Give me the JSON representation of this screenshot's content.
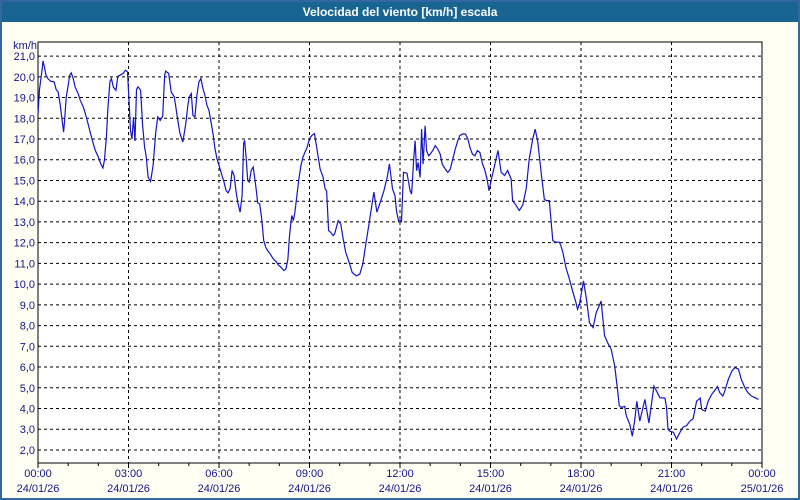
{
  "window": {
    "title": "Velocidad del viento [km/h] escala"
  },
  "colors": {
    "frame_border": "#3366a3",
    "titlebar_bg": "#186592",
    "titlebar_text": "#ffffff",
    "content_bg": "#fffff4",
    "plot_bg": "#ffffff",
    "plot_border": "#000000",
    "grid": "#000000",
    "axis_label_text": "#14148c",
    "line": "#1414c8"
  },
  "chart_data": {
    "type": "line",
    "title": "Velocidad del viento [km/h] escala",
    "ylabel": "km/h",
    "xlabel": "",
    "grid": true,
    "legend_position": "none",
    "ylim": [
      1.37,
      21.68
    ],
    "xlim_minutes": [
      0,
      1440
    ],
    "y_tick_values": [
      21,
      20,
      19,
      18,
      17,
      16,
      15,
      14,
      13,
      12,
      11,
      10,
      9,
      8,
      7,
      6,
      5,
      4,
      3,
      2
    ],
    "y_tick_labels": [
      "21,0",
      "20,0",
      "19,0",
      "18,0",
      "17,0",
      "16,0",
      "15,0",
      "14,0",
      "13,0",
      "12,0",
      "11,0",
      "10,0",
      "9,0",
      "8,0",
      "7,0",
      "6,0",
      "5,0",
      "4,0",
      "3,0",
      "2,0"
    ],
    "x_major_ticks": [
      {
        "minute": 0,
        "time": "00:00",
        "date": "24/01/26"
      },
      {
        "minute": 180,
        "time": "03:00",
        "date": "24/01/26"
      },
      {
        "minute": 360,
        "time": "06:00",
        "date": "24/01/26"
      },
      {
        "minute": 540,
        "time": "09:00",
        "date": "24/01/26"
      },
      {
        "minute": 720,
        "time": "12:00",
        "date": "24/01/26"
      },
      {
        "minute": 900,
        "time": "15:00",
        "date": "24/01/26"
      },
      {
        "minute": 1080,
        "time": "18:00",
        "date": "24/01/26"
      },
      {
        "minute": 1260,
        "time": "21:00",
        "date": "24/01/26"
      },
      {
        "minute": 1440,
        "time": "00:00",
        "date": "25/01/26"
      }
    ],
    "x_minor_tick_every_minutes": 60,
    "series": [
      {
        "name": "wind_speed_kmh",
        "points": [
          [
            0,
            18.2
          ],
          [
            3,
            19.4
          ],
          [
            8,
            20.3
          ],
          [
            10,
            20.77
          ],
          [
            13,
            20.45
          ],
          [
            16,
            20.08
          ],
          [
            20,
            19.9
          ],
          [
            26,
            19.78
          ],
          [
            32,
            19.76
          ],
          [
            36,
            19.4
          ],
          [
            40,
            19.27
          ],
          [
            44,
            18.7
          ],
          [
            48,
            17.9
          ],
          [
            51,
            17.34
          ],
          [
            53,
            17.9
          ],
          [
            56,
            19.0
          ],
          [
            60,
            19.6
          ],
          [
            63,
            20.08
          ],
          [
            66,
            20.19
          ],
          [
            70,
            19.92
          ],
          [
            74,
            19.5
          ],
          [
            80,
            19.19
          ],
          [
            84,
            18.87
          ],
          [
            90,
            18.55
          ],
          [
            96,
            18.06
          ],
          [
            102,
            17.5
          ],
          [
            108,
            16.94
          ],
          [
            114,
            16.45
          ],
          [
            120,
            16.13
          ],
          [
            125,
            15.8
          ],
          [
            129,
            15.6
          ],
          [
            132,
            15.97
          ],
          [
            136,
            17.1
          ],
          [
            139,
            18.47
          ],
          [
            143,
            19.76
          ],
          [
            146,
            19.92
          ],
          [
            150,
            19.5
          ],
          [
            155,
            19.35
          ],
          [
            159,
            20.03
          ],
          [
            163,
            20.08
          ],
          [
            169,
            20.16
          ],
          [
            174,
            20.32
          ],
          [
            178,
            20.24
          ],
          [
            181,
            18.87
          ],
          [
            184,
            17.4
          ],
          [
            187,
            17.0
          ],
          [
            190,
            18.05
          ],
          [
            193,
            16.9
          ],
          [
            196,
            19.4
          ],
          [
            199,
            19.52
          ],
          [
            204,
            19.35
          ],
          [
            208,
            17.66
          ],
          [
            212,
            16.6
          ],
          [
            215,
            16.2
          ],
          [
            219,
            15.16
          ],
          [
            224,
            14.95
          ],
          [
            229,
            15.73
          ],
          [
            234,
            17.3
          ],
          [
            238,
            18.06
          ],
          [
            243,
            17.9
          ],
          [
            248,
            18.1
          ],
          [
            252,
            20.1
          ],
          [
            254,
            20.27
          ],
          [
            260,
            20.16
          ],
          [
            265,
            19.27
          ],
          [
            271,
            19.03
          ],
          [
            277,
            18.06
          ],
          [
            282,
            17.3
          ],
          [
            288,
            16.85
          ],
          [
            294,
            17.74
          ],
          [
            298,
            18.6
          ],
          [
            301,
            19.03
          ],
          [
            305,
            19.19
          ],
          [
            308,
            18.15
          ],
          [
            312,
            18.06
          ],
          [
            316,
            19.11
          ],
          [
            320,
            19.76
          ],
          [
            324,
            19.92
          ],
          [
            328,
            19.44
          ],
          [
            332,
            19.11
          ],
          [
            336,
            18.63
          ],
          [
            340,
            18.39
          ],
          [
            344,
            17.82
          ],
          [
            348,
            17.26
          ],
          [
            352,
            16.53
          ],
          [
            356,
            16.05
          ],
          [
            360,
            15.73
          ],
          [
            365,
            15.32
          ],
          [
            370,
            14.92
          ],
          [
            374,
            14.52
          ],
          [
            378,
            14.4
          ],
          [
            382,
            14.6
          ],
          [
            386,
            15.48
          ],
          [
            390,
            15.24
          ],
          [
            394,
            14.44
          ],
          [
            398,
            13.87
          ],
          [
            402,
            13.47
          ],
          [
            406,
            14.27
          ],
          [
            409,
            16.77
          ],
          [
            411,
            16.94
          ],
          [
            414,
            16.13
          ],
          [
            417,
            15.0
          ],
          [
            420,
            14.92
          ],
          [
            424,
            15.48
          ],
          [
            428,
            15.65
          ],
          [
            433,
            14.76
          ],
          [
            437,
            13.92
          ],
          [
            441,
            13.87
          ],
          [
            445,
            13.15
          ],
          [
            449,
            12.1
          ],
          [
            453,
            11.77
          ],
          [
            457,
            11.6
          ],
          [
            462,
            11.45
          ],
          [
            466,
            11.29
          ],
          [
            470,
            11.16
          ],
          [
            474,
            11.08
          ],
          [
            478,
            10.92
          ],
          [
            482,
            10.85
          ],
          [
            489,
            10.65
          ],
          [
            493,
            10.73
          ],
          [
            497,
            11.2
          ],
          [
            500,
            12.26
          ],
          [
            503,
            12.98
          ],
          [
            505,
            13.31
          ],
          [
            508,
            13.06
          ],
          [
            511,
            13.47
          ],
          [
            515,
            14.27
          ],
          [
            519,
            15.08
          ],
          [
            523,
            15.73
          ],
          [
            527,
            16.13
          ],
          [
            531,
            16.37
          ],
          [
            535,
            16.58
          ],
          [
            540,
            17.02
          ],
          [
            545,
            17.18
          ],
          [
            550,
            17.26
          ],
          [
            561,
            15.56
          ],
          [
            567,
            15.16
          ],
          [
            571,
            14.6
          ],
          [
            574,
            14.5
          ],
          [
            578,
            12.58
          ],
          [
            582,
            12.5
          ],
          [
            587,
            12.34
          ],
          [
            590,
            12.42
          ],
          [
            597,
            13.06
          ],
          [
            602,
            12.9
          ],
          [
            607,
            12.18
          ],
          [
            612,
            11.53
          ],
          [
            620,
            10.97
          ],
          [
            625,
            10.56
          ],
          [
            633,
            10.4
          ],
          [
            640,
            10.48
          ],
          [
            646,
            10.97
          ],
          [
            652,
            11.92
          ],
          [
            660,
            13.15
          ],
          [
            668,
            14.44
          ],
          [
            674,
            13.47
          ],
          [
            680,
            13.9
          ],
          [
            688,
            14.5
          ],
          [
            695,
            15.2
          ],
          [
            699,
            15.8
          ],
          [
            705,
            14.6
          ],
          [
            710,
            14.26
          ],
          [
            713,
            13.53
          ],
          [
            717,
            13.05
          ],
          [
            720,
            13.1
          ],
          [
            723,
            13.02
          ],
          [
            727,
            15.39
          ],
          [
            734,
            15.35
          ],
          [
            740,
            14.5
          ],
          [
            743,
            14.34
          ],
          [
            747,
            15.95
          ],
          [
            750,
            16.92
          ],
          [
            753,
            15.47
          ],
          [
            756,
            15.87
          ],
          [
            760,
            15.15
          ],
          [
            763,
            17.48
          ],
          [
            766,
            15.79
          ],
          [
            770,
            17.64
          ],
          [
            773,
            16.44
          ],
          [
            777,
            16.19
          ],
          [
            780,
            16.27
          ],
          [
            785,
            16.44
          ],
          [
            790,
            16.68
          ],
          [
            795,
            16.52
          ],
          [
            800,
            16.27
          ],
          [
            804,
            15.79
          ],
          [
            810,
            15.55
          ],
          [
            815,
            15.39
          ],
          [
            820,
            15.55
          ],
          [
            824,
            15.95
          ],
          [
            830,
            16.52
          ],
          [
            835,
            16.92
          ],
          [
            839,
            17.16
          ],
          [
            844,
            17.24
          ],
          [
            850,
            17.24
          ],
          [
            855,
            17.0
          ],
          [
            859,
            16.6
          ],
          [
            864,
            16.27
          ],
          [
            869,
            16.19
          ],
          [
            874,
            16.44
          ],
          [
            879,
            16.35
          ],
          [
            884,
            15.79
          ],
          [
            888,
            15.55
          ],
          [
            893,
            15.08
          ],
          [
            897,
            14.5
          ],
          [
            902,
            15.08
          ],
          [
            908,
            15.7
          ],
          [
            915,
            16.45
          ],
          [
            921,
            15.4
          ],
          [
            928,
            15.24
          ],
          [
            934,
            15.48
          ],
          [
            941,
            15.08
          ],
          [
            944,
            14.03
          ],
          [
            951,
            13.8
          ],
          [
            957,
            13.55
          ],
          [
            964,
            13.8
          ],
          [
            971,
            14.6
          ],
          [
            977,
            16.03
          ],
          [
            984,
            17.0
          ],
          [
            989,
            17.48
          ],
          [
            994,
            16.85
          ],
          [
            1001,
            15.32
          ],
          [
            1007,
            14.1
          ],
          [
            1011,
            14.03
          ],
          [
            1017,
            14.03
          ],
          [
            1024,
            12.1
          ],
          [
            1030,
            12.02
          ],
          [
            1037,
            12.02
          ],
          [
            1040,
            11.85
          ],
          [
            1044,
            11.53
          ],
          [
            1050,
            10.8
          ],
          [
            1057,
            10.24
          ],
          [
            1063,
            9.68
          ],
          [
            1070,
            9.1
          ],
          [
            1073,
            8.79
          ],
          [
            1077,
            9.03
          ],
          [
            1085,
            10.16
          ],
          [
            1091,
            9.26
          ],
          [
            1097,
            8.13
          ],
          [
            1104,
            7.9
          ],
          [
            1110,
            8.6
          ],
          [
            1120,
            9.18
          ],
          [
            1127,
            7.5
          ],
          [
            1133,
            7.18
          ],
          [
            1140,
            6.85
          ],
          [
            1147,
            6.05
          ],
          [
            1153,
            4.84
          ],
          [
            1156,
            4.15
          ],
          [
            1160,
            4.05
          ],
          [
            1167,
            4.1
          ],
          [
            1170,
            3.65
          ],
          [
            1177,
            3.23
          ],
          [
            1182,
            2.66
          ],
          [
            1187,
            3.47
          ],
          [
            1191,
            4.35
          ],
          [
            1197,
            3.39
          ],
          [
            1207,
            4.44
          ],
          [
            1215,
            3.3
          ],
          [
            1225,
            5.08
          ],
          [
            1229,
            4.9
          ],
          [
            1237,
            4.52
          ],
          [
            1247,
            4.5
          ],
          [
            1250,
            4.06
          ],
          [
            1253,
            3.0
          ],
          [
            1257,
            2.9
          ],
          [
            1264,
            2.85
          ],
          [
            1270,
            2.53
          ],
          [
            1277,
            2.85
          ],
          [
            1283,
            3.1
          ],
          [
            1290,
            3.18
          ],
          [
            1297,
            3.4
          ],
          [
            1303,
            3.5
          ],
          [
            1310,
            4.35
          ],
          [
            1317,
            4.5
          ],
          [
            1320,
            3.95
          ],
          [
            1327,
            3.87
          ],
          [
            1333,
            4.35
          ],
          [
            1340,
            4.68
          ],
          [
            1347,
            4.9
          ],
          [
            1351,
            5.06
          ],
          [
            1356,
            4.76
          ],
          [
            1362,
            4.6
          ],
          [
            1366,
            4.84
          ],
          [
            1373,
            5.4
          ],
          [
            1380,
            5.8
          ],
          [
            1386,
            5.97
          ],
          [
            1393,
            5.9
          ],
          [
            1399,
            5.4
          ],
          [
            1406,
            5.0
          ],
          [
            1412,
            4.76
          ],
          [
            1419,
            4.6
          ],
          [
            1426,
            4.52
          ],
          [
            1433,
            4.44
          ]
        ]
      }
    ]
  }
}
